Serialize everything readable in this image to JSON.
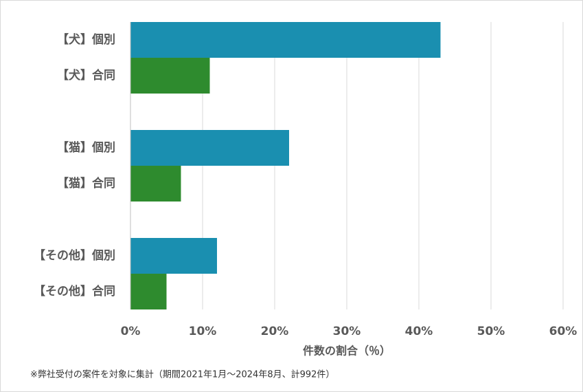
{
  "chart_data": {
    "type": "barh",
    "categories": [
      "【犬】個別",
      "【犬】合同",
      "【猫】個別",
      "【猫】合同",
      "【その他】個別",
      "【その他】合同"
    ],
    "values": [
      43,
      11,
      22,
      7,
      12,
      5
    ],
    "colors": [
      "#1a8fb0",
      "#2e8b2e",
      "#1a8fb0",
      "#2e8b2e",
      "#1a8fb0",
      "#2e8b2e"
    ],
    "xlim": [
      0,
      60
    ],
    "xticks": [
      {
        "value": 0,
        "label": "0%"
      },
      {
        "value": 10,
        "label": "10%"
      },
      {
        "value": 20,
        "label": "20%"
      },
      {
        "value": 30,
        "label": "30%"
      },
      {
        "value": 40,
        "label": "40%"
      },
      {
        "value": 50,
        "label": "50%"
      },
      {
        "value": 60,
        "label": "60%"
      }
    ],
    "xlabel": "件数の割合（％）",
    "footnote": "※弊社受付の案件を対象に集計（期間2021年1月～2024年8月、計992件）",
    "grid": true
  }
}
